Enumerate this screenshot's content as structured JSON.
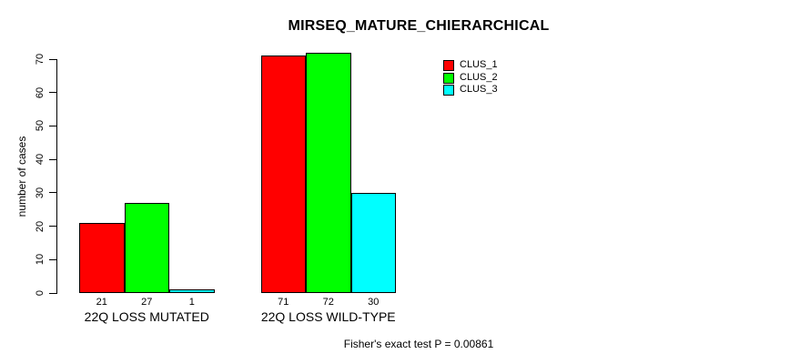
{
  "title": "MIRSEQ_MATURE_CHIERARCHICAL",
  "footer": "Fisher's exact test P = 0.00861",
  "y_axis": {
    "label": "number of cases",
    "ticks": [
      0,
      10,
      20,
      30,
      40,
      50,
      60,
      70
    ]
  },
  "legend": {
    "position": "top-right",
    "items": [
      {
        "label": "CLUS_1",
        "color": "#FF0000"
      },
      {
        "label": "CLUS_2",
        "color": "#00FF00"
      },
      {
        "label": "CLUS_3",
        "color": "#00FFFF"
      }
    ]
  },
  "chart_data": {
    "type": "bar",
    "title": "MIRSEQ_MATURE_CHIERARCHICAL",
    "xlabel": "",
    "ylabel": "number of cases",
    "ylim": [
      0,
      70
    ],
    "grid": false,
    "legend_position": "top-right",
    "annotation": "Fisher's exact test P = 0.00861",
    "categories": [
      "22Q LOSS MUTATED",
      "22Q LOSS WILD-TYPE"
    ],
    "series": [
      {
        "name": "CLUS_1",
        "color": "#FF0000",
        "values": [
          21,
          71
        ]
      },
      {
        "name": "CLUS_2",
        "color": "#00FF00",
        "values": [
          27,
          72
        ]
      },
      {
        "name": "CLUS_3",
        "color": "#00FFFF",
        "values": [
          1,
          30
        ]
      }
    ],
    "bar_value_labels": {
      "22Q LOSS MUTATED": [
        21,
        27,
        1
      ],
      "22Q LOSS WILD-TYPE": [
        71,
        72,
        30
      ]
    }
  }
}
